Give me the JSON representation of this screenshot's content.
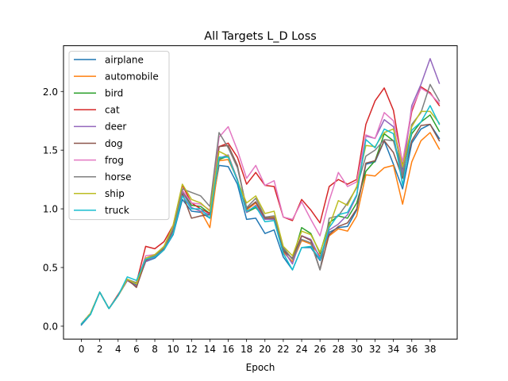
{
  "chart_data": {
    "type": "line",
    "title": "All Targets L_D Loss",
    "xlabel": "Epoch",
    "ylabel": "",
    "xlim": [
      -1.95,
      40.95
    ],
    "ylim": [
      -0.11,
      2.39
    ],
    "x_ticks": [
      0,
      2,
      4,
      6,
      8,
      10,
      12,
      14,
      16,
      18,
      20,
      22,
      24,
      26,
      28,
      30,
      32,
      34,
      36,
      38
    ],
    "y_ticks": [
      0.0,
      0.5,
      1.0,
      1.5,
      2.0
    ],
    "y_tick_labels": [
      "0.0",
      "0.5",
      "1.0",
      "1.5",
      "2.0"
    ],
    "grid": false,
    "legend_position": "upper left",
    "x": [
      0,
      1,
      2,
      3,
      4,
      5,
      6,
      7,
      8,
      9,
      10,
      11,
      12,
      13,
      14,
      15,
      16,
      17,
      18,
      19,
      20,
      21,
      22,
      23,
      24,
      25,
      26,
      27,
      28,
      29,
      30,
      31,
      32,
      33,
      34,
      35,
      36,
      37,
      38,
      39
    ],
    "series": [
      {
        "name": "airplane",
        "color": "#1f77b4",
        "values": [
          0.01,
          0.1,
          0.29,
          0.15,
          0.26,
          0.39,
          0.35,
          0.55,
          0.58,
          0.65,
          0.78,
          1.08,
          0.98,
          0.97,
          0.92,
          1.37,
          1.36,
          1.21,
          0.91,
          0.92,
          0.79,
          0.82,
          0.59,
          0.48,
          0.67,
          0.67,
          0.56,
          0.8,
          0.84,
          0.85,
          0.99,
          1.38,
          1.4,
          1.58,
          1.38,
          1.17,
          1.56,
          1.68,
          1.72,
          1.6
        ]
      },
      {
        "name": "automobile",
        "color": "#ff7f0e",
        "values": [
          0.02,
          0.11,
          0.29,
          0.15,
          0.26,
          0.39,
          0.34,
          0.56,
          0.59,
          0.68,
          0.82,
          1.15,
          1.01,
          0.98,
          0.84,
          1.41,
          1.42,
          1.25,
          0.99,
          1.05,
          0.92,
          0.93,
          0.63,
          0.55,
          0.73,
          0.7,
          0.6,
          0.77,
          0.83,
          0.81,
          0.94,
          1.29,
          1.28,
          1.35,
          1.37,
          1.04,
          1.4,
          1.58,
          1.65,
          1.51
        ]
      },
      {
        "name": "bird",
        "color": "#2ca02c",
        "values": [
          0.02,
          0.11,
          0.29,
          0.15,
          0.26,
          0.39,
          0.34,
          0.56,
          0.59,
          0.66,
          0.81,
          1.15,
          1.03,
          1.02,
          0.96,
          1.42,
          1.45,
          1.25,
          0.97,
          1.01,
          0.92,
          0.92,
          0.66,
          0.57,
          0.84,
          0.79,
          0.62,
          0.88,
          0.94,
          0.92,
          1.05,
          1.32,
          1.41,
          1.64,
          1.58,
          1.33,
          1.64,
          1.74,
          1.8,
          1.66
        ]
      },
      {
        "name": "cat",
        "color": "#d62728",
        "values": [
          0.02,
          0.11,
          0.29,
          0.15,
          0.27,
          0.39,
          0.37,
          0.68,
          0.66,
          0.72,
          0.86,
          1.2,
          1.05,
          1.0,
          0.96,
          1.53,
          1.56,
          1.44,
          1.21,
          1.31,
          1.2,
          1.19,
          0.93,
          0.9,
          1.08,
          0.99,
          0.88,
          1.19,
          1.25,
          1.21,
          1.25,
          1.72,
          1.92,
          2.03,
          1.84,
          1.38,
          1.83,
          2.04,
          1.99,
          1.88
        ]
      },
      {
        "name": "deer",
        "color": "#9467bd",
        "values": [
          0.02,
          0.11,
          0.29,
          0.15,
          0.26,
          0.39,
          0.34,
          0.55,
          0.59,
          0.66,
          0.81,
          1.14,
          1.01,
          0.98,
          0.95,
          1.43,
          1.46,
          1.25,
          0.97,
          1.03,
          0.91,
          0.91,
          0.65,
          0.53,
          0.77,
          0.74,
          0.58,
          0.82,
          0.87,
          0.95,
          1.11,
          1.62,
          1.6,
          1.76,
          1.7,
          1.3,
          1.88,
          2.06,
          2.28,
          2.07
        ]
      },
      {
        "name": "dog",
        "color": "#8c564b",
        "values": [
          0.02,
          0.11,
          0.29,
          0.15,
          0.26,
          0.4,
          0.33,
          0.56,
          0.6,
          0.66,
          0.82,
          1.13,
          0.92,
          0.94,
          0.95,
          1.53,
          1.54,
          1.37,
          1.0,
          1.06,
          0.92,
          0.92,
          0.64,
          0.58,
          0.77,
          0.73,
          0.48,
          0.78,
          0.85,
          0.88,
          1.0,
          1.39,
          1.41,
          1.58,
          1.48,
          1.26,
          1.58,
          1.71,
          1.72,
          1.58
        ]
      },
      {
        "name": "frog",
        "color": "#e377c2",
        "values": [
          0.02,
          0.11,
          0.29,
          0.15,
          0.26,
          0.4,
          0.36,
          0.6,
          0.61,
          0.67,
          0.84,
          1.16,
          1.05,
          1.04,
          0.99,
          1.61,
          1.7,
          1.5,
          1.26,
          1.37,
          1.2,
          1.24,
          0.93,
          0.91,
          1.06,
          0.91,
          0.77,
          1.07,
          1.31,
          1.19,
          1.23,
          1.63,
          1.6,
          1.82,
          1.75,
          1.4,
          1.85,
          2.03,
          1.98,
          1.9
        ]
      },
      {
        "name": "horse",
        "color": "#7f7f7f",
        "values": [
          0.02,
          0.11,
          0.29,
          0.15,
          0.26,
          0.4,
          0.37,
          0.58,
          0.6,
          0.67,
          0.83,
          1.17,
          1.14,
          1.11,
          1.02,
          1.65,
          1.52,
          1.35,
          1.01,
          1.09,
          0.93,
          0.94,
          0.67,
          0.57,
          0.74,
          0.71,
          0.48,
          0.92,
          0.94,
          1.05,
          1.18,
          1.45,
          1.5,
          1.59,
          1.58,
          1.28,
          1.72,
          1.82,
          2.06,
          1.92
        ]
      },
      {
        "name": "ship",
        "color": "#bcbd22",
        "values": [
          0.02,
          0.11,
          0.29,
          0.15,
          0.26,
          0.4,
          0.36,
          0.58,
          0.61,
          0.68,
          0.86,
          1.21,
          1.08,
          1.05,
          0.98,
          1.49,
          1.45,
          1.24,
          1.05,
          1.11,
          0.96,
          0.98,
          0.68,
          0.6,
          0.81,
          0.78,
          0.63,
          0.85,
          1.07,
          1.03,
          1.19,
          1.54,
          1.53,
          1.65,
          1.68,
          1.36,
          1.7,
          1.83,
          1.83,
          1.73
        ]
      },
      {
        "name": "truck",
        "color": "#17becf",
        "values": [
          0.02,
          0.1,
          0.29,
          0.15,
          0.26,
          0.42,
          0.39,
          0.57,
          0.59,
          0.65,
          0.79,
          1.11,
          1.0,
          1.0,
          0.92,
          1.44,
          1.44,
          1.24,
          0.98,
          1.02,
          0.89,
          0.9,
          0.62,
          0.48,
          0.67,
          0.68,
          0.57,
          0.84,
          0.95,
          0.97,
          1.12,
          1.59,
          1.52,
          1.68,
          1.64,
          1.2,
          1.67,
          1.74,
          1.88,
          1.72
        ]
      }
    ]
  }
}
